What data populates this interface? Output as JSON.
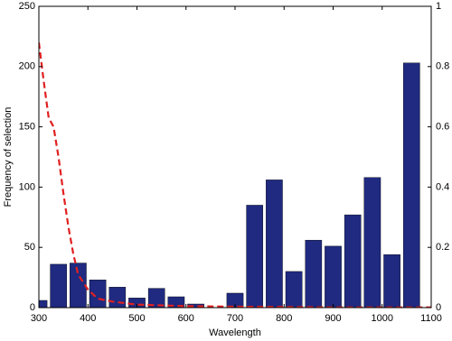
{
  "chart_data": {
    "type": "bar",
    "xlabel": "Wavelength",
    "ylabel": "Frequency of selection",
    "xlim": [
      300,
      1100
    ],
    "xticks": [
      300,
      400,
      500,
      600,
      700,
      800,
      900,
      1000,
      1100
    ],
    "ylim": [
      0,
      250
    ],
    "yticks": [
      0,
      50,
      100,
      150,
      200,
      250
    ],
    "y2lim": [
      0,
      1
    ],
    "y2ticks": [
      0,
      0.2,
      0.4,
      0.6,
      0.8,
      1
    ],
    "series": [
      {
        "type": "bar",
        "color": "#1f2a80",
        "x": [
          300,
          340,
          380,
          420,
          460,
          500,
          540,
          580,
          620,
          660,
          700,
          740,
          780,
          820,
          860,
          900,
          940,
          980,
          1020,
          1060
        ],
        "values": [
          6,
          36,
          37,
          23,
          17,
          8,
          16,
          9,
          3,
          0,
          12,
          85,
          106,
          30,
          56,
          51,
          77,
          108,
          44,
          203
        ]
      },
      {
        "type": "line",
        "axis": "y2",
        "color": "#e02020",
        "dashed": true,
        "x": [
          300,
          310,
          320,
          330,
          340,
          350,
          360,
          370,
          380,
          400,
          420,
          450,
          500,
          600,
          700,
          800,
          900,
          1000,
          1100
        ],
        "values": [
          0.88,
          0.75,
          0.63,
          0.6,
          0.5,
          0.38,
          0.27,
          0.18,
          0.11,
          0.06,
          0.03,
          0.02,
          0.01,
          0.005,
          0.003,
          0.002,
          0.001,
          0.001,
          0.001
        ]
      }
    ]
  }
}
